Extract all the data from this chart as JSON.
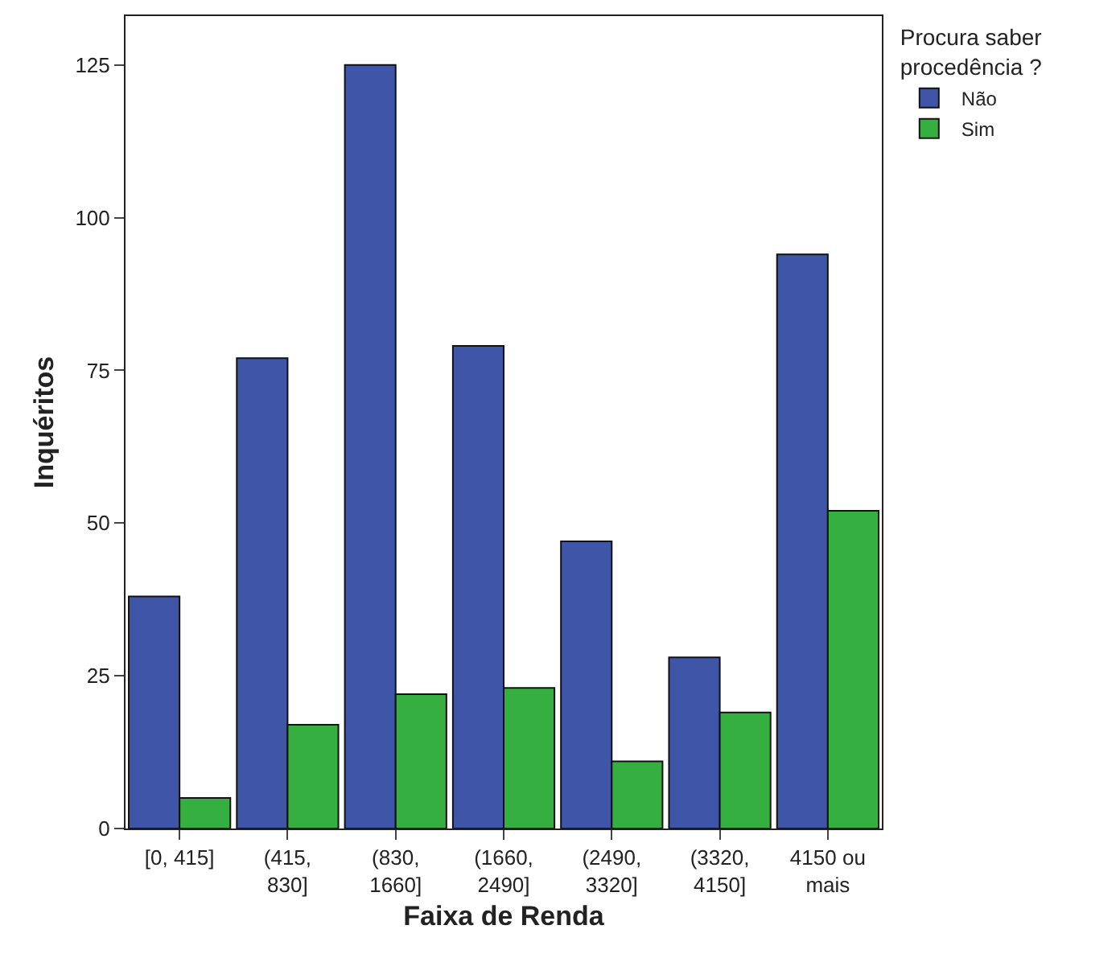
{
  "chart_data": {
    "type": "bar",
    "xlabel": "Faixa de Renda",
    "ylabel": "Inquéritos",
    "legend_title": "Procura saber procedência ?",
    "categories": [
      "[0, 415]",
      "(415, 830]",
      "(830, 1660]",
      "(1660, 2490]",
      "(2490, 3320]",
      "(3320, 4150]",
      "4150 ou mais"
    ],
    "series": [
      {
        "name": "Não",
        "color": "#3f56a8",
        "values": [
          38,
          77,
          125,
          79,
          47,
          28,
          94
        ]
      },
      {
        "name": "Sim",
        "color": "#35b040",
        "values": [
          5,
          17,
          22,
          23,
          11,
          19,
          52
        ]
      }
    ],
    "ylim": [
      0,
      133
    ],
    "yticks": [
      0,
      25,
      50,
      75,
      100,
      125
    ],
    "grid": false,
    "legend": "top right"
  }
}
